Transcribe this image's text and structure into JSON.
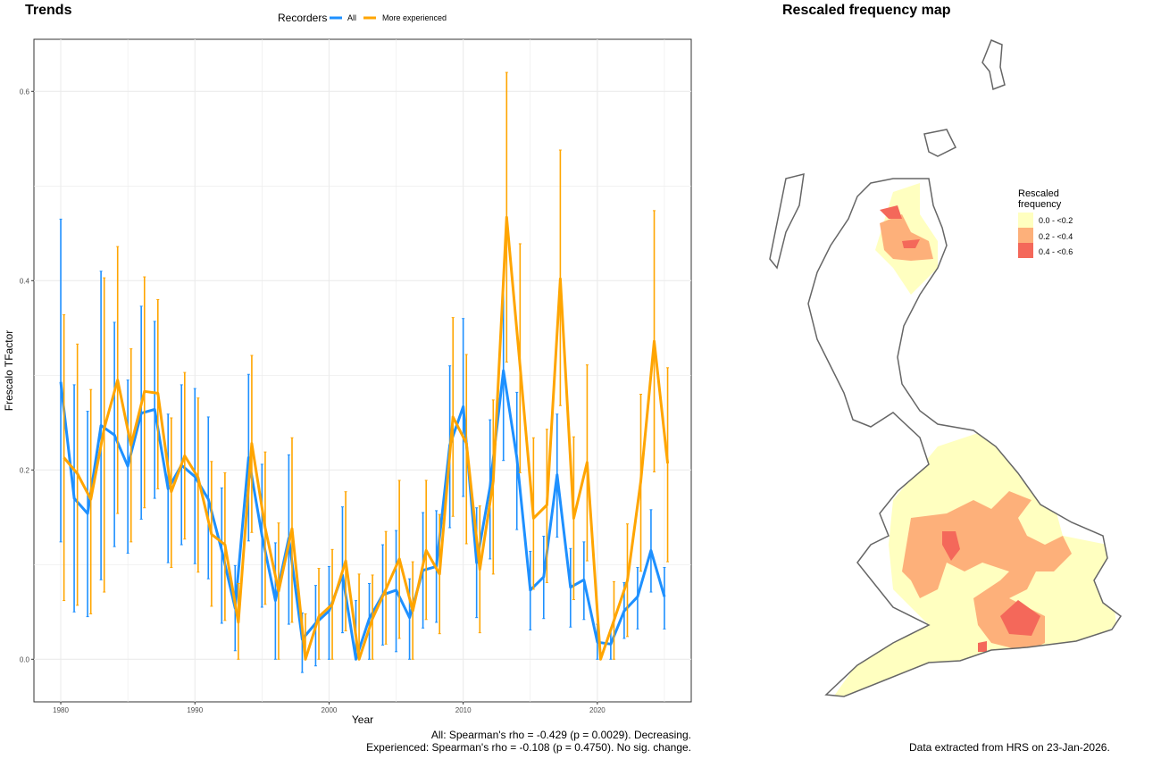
{
  "trends": {
    "title": "Trends"
  },
  "map": {
    "title": "Rescaled frequency map",
    "legend_title_1": "Rescaled",
    "legend_title_2": "frequency",
    "legend": [
      {
        "label": "0.0 - <0.2",
        "color": "#FFFFC0"
      },
      {
        "label": "0.2 - <0.4",
        "color": "#FDB07A"
      },
      {
        "label": "0.4 - <0.6",
        "color": "#F4685A"
      }
    ],
    "outline_color": "#666666"
  },
  "footer": {
    "stat_all": "All: Spearman's rho = -0.429 (p = 0.0029). Decreasing.",
    "stat_exp": "Experienced: Spearman's rho = -0.108 (p = 0.4750). No sig. change.",
    "source": "Data extracted from HRS on 23-Jan-2026."
  },
  "chart_data": {
    "type": "line",
    "title": "Trends",
    "xlabel": "Year",
    "ylabel": "Frescalo TFactor",
    "xlim": [
      1978,
      2027
    ],
    "ylim": [
      -0.045,
      0.655
    ],
    "xticks": [
      1980,
      1990,
      2000,
      2010,
      2020
    ],
    "yticks": [
      0.0,
      0.2,
      0.4,
      0.6
    ],
    "ytick_labels": [
      "0.0",
      "0.2",
      "0.4",
      "0.6"
    ],
    "grid": true,
    "legend_title": "Recorders",
    "legend_position": "top",
    "x": [
      1980,
      1981,
      1982,
      1983,
      1984,
      1985,
      1986,
      1987,
      1988,
      1989,
      1990,
      1991,
      1992,
      1993,
      1994,
      1995,
      1996,
      1997,
      1998,
      1999,
      2000,
      2001,
      2002,
      2003,
      2004,
      2005,
      2006,
      2007,
      2008,
      2009,
      2010,
      2011,
      2012,
      2013,
      2014,
      2015,
      2016,
      2017,
      2018,
      2019,
      2020,
      2021,
      2022,
      2023,
      2024,
      2025
    ],
    "series": [
      {
        "name": "All",
        "color": "#1E90FF",
        "values": [
          0.293,
          0.17,
          0.154,
          0.247,
          0.237,
          0.204,
          0.26,
          0.264,
          0.18,
          0.205,
          0.193,
          0.169,
          0.115,
          0.054,
          0.213,
          0.131,
          0.062,
          0.128,
          0.021,
          0.038,
          0.051,
          0.089,
          0.0,
          0.043,
          0.068,
          0.073,
          0.044,
          0.094,
          0.098,
          0.226,
          0.267,
          0.102,
          0.182,
          0.305,
          0.213,
          0.073,
          0.087,
          0.195,
          0.076,
          0.084,
          0.018,
          0.016,
          0.051,
          0.066,
          0.115,
          0.066
        ],
        "upper": [
          0.465,
          0.29,
          0.262,
          0.41,
          0.356,
          0.295,
          0.373,
          0.357,
          0.259,
          0.29,
          0.286,
          0.256,
          0.181,
          0.099,
          0.301,
          0.206,
          0.123,
          0.216,
          0.049,
          0.078,
          0.098,
          0.161,
          0.062,
          0.08,
          0.121,
          0.136,
          0.085,
          0.155,
          0.157,
          0.31,
          0.36,
          0.16,
          0.253,
          0.4,
          0.282,
          0.114,
          0.13,
          0.259,
          0.117,
          0.124,
          0.037,
          0.031,
          0.081,
          0.097,
          0.158,
          0.097
        ],
        "lower": [
          0.124,
          0.05,
          0.045,
          0.084,
          0.119,
          0.112,
          0.148,
          0.17,
          0.102,
          0.121,
          0.101,
          0.085,
          0.038,
          0.009,
          0.125,
          0.055,
          0.0,
          0.037,
          -0.014,
          -0.007,
          0.0,
          0.028,
          0.0,
          0.0,
          0.015,
          0.008,
          0.0,
          0.033,
          0.039,
          0.139,
          0.172,
          0.044,
          0.106,
          0.21,
          0.137,
          0.031,
          0.043,
          0.129,
          0.034,
          0.042,
          0.0,
          0.0,
          0.022,
          0.032,
          0.071,
          0.032
        ]
      },
      {
        "name": "More experienced",
        "color": "#FFA500",
        "values": [
          0.213,
          0.196,
          0.169,
          0.244,
          0.295,
          0.226,
          0.283,
          0.281,
          0.177,
          0.215,
          0.192,
          0.132,
          0.121,
          0.039,
          0.228,
          0.139,
          0.072,
          0.138,
          0.0,
          0.045,
          0.058,
          0.104,
          0.0,
          0.043,
          0.074,
          0.106,
          0.051,
          0.115,
          0.09,
          0.256,
          0.228,
          0.095,
          0.188,
          0.467,
          0.31,
          0.149,
          0.163,
          0.402,
          0.149,
          0.208,
          0.0,
          0.041,
          0.083,
          0.188,
          0.336,
          0.207
        ],
        "upper": [
          0.364,
          0.333,
          0.285,
          0.403,
          0.436,
          0.328,
          0.404,
          0.38,
          0.255,
          0.303,
          0.276,
          0.209,
          0.197,
          0.08,
          0.321,
          0.219,
          0.144,
          0.234,
          0.048,
          0.096,
          0.116,
          0.177,
          0.09,
          0.089,
          0.135,
          0.189,
          0.103,
          0.189,
          0.153,
          0.361,
          0.322,
          0.162,
          0.274,
          0.62,
          0.439,
          0.234,
          0.243,
          0.538,
          0.235,
          0.311,
          0.0,
          0.082,
          0.143,
          0.28,
          0.474,
          0.308
        ],
        "lower": [
          0.062,
          0.057,
          0.048,
          0.071,
          0.154,
          0.124,
          0.16,
          0.18,
          0.097,
          0.127,
          0.092,
          0.056,
          0.041,
          0.0,
          0.134,
          0.058,
          0.0,
          0.039,
          0.0,
          0.0,
          0.0,
          0.03,
          0.0,
          0.0,
          0.016,
          0.022,
          0.0,
          0.042,
          0.027,
          0.151,
          0.122,
          0.028,
          0.09,
          0.314,
          0.197,
          0.074,
          0.081,
          0.268,
          0.063,
          0.104,
          0.0,
          0.0,
          0.024,
          0.093,
          0.198,
          0.103
        ]
      }
    ]
  }
}
